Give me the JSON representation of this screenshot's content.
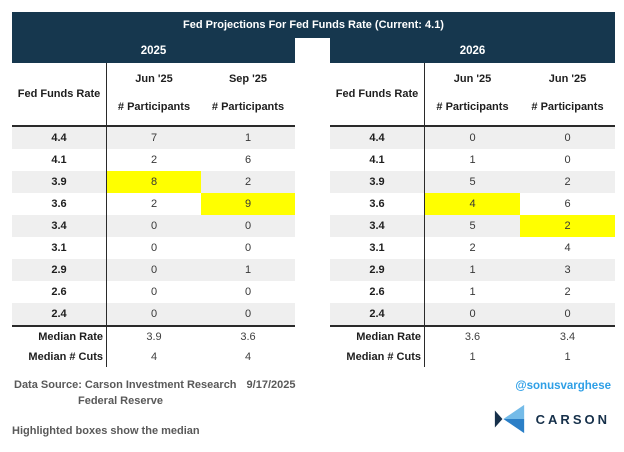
{
  "title": "Fed Projections For Fed Funds Rate (Current: 4.1)",
  "chart_data": [
    {
      "type": "table",
      "group": "2025",
      "rate_column_header": "Fed Funds Rate",
      "columns": [
        {
          "period": "Jun '25",
          "metric": "# Participants"
        },
        {
          "period": "Sep '25",
          "metric": "# Participants"
        }
      ],
      "rates": [
        "4.4",
        "4.1",
        "3.9",
        "3.6",
        "3.4",
        "3.1",
        "2.9",
        "2.6",
        "2.4"
      ],
      "series": [
        {
          "name": "Jun '25",
          "values": [
            7,
            2,
            8,
            2,
            0,
            0,
            0,
            0,
            0
          ],
          "median_highlight_rate": "3.9"
        },
        {
          "name": "Sep '25",
          "values": [
            1,
            6,
            2,
            9,
            0,
            0,
            1,
            0,
            0
          ],
          "median_highlight_rate": "3.6"
        }
      ],
      "median_rate": {
        "label": "Median Rate",
        "values": [
          "3.9",
          "3.6"
        ]
      },
      "median_cuts": {
        "label": "Median # Cuts",
        "values": [
          "4",
          "4"
        ]
      }
    },
    {
      "type": "table",
      "group": "2026",
      "rate_column_header": "Fed Funds Rate",
      "columns": [
        {
          "period": "Jun '25",
          "metric": "# Participants"
        },
        {
          "period": "Jun '25",
          "metric": "# Participants"
        }
      ],
      "rates": [
        "4.4",
        "4.1",
        "3.9",
        "3.6",
        "3.4",
        "3.1",
        "2.9",
        "2.6",
        "2.4"
      ],
      "series": [
        {
          "name": "Jun '25",
          "values": [
            0,
            1,
            5,
            4,
            5,
            2,
            1,
            1,
            0
          ],
          "median_highlight_rate": "3.6"
        },
        {
          "name": "Jun '25",
          "values": [
            0,
            0,
            2,
            6,
            2,
            4,
            3,
            2,
            0
          ],
          "median_highlight_rate": "3.4"
        }
      ],
      "median_rate": {
        "label": "Median Rate",
        "values": [
          "3.6",
          "3.4"
        ]
      },
      "median_cuts": {
        "label": "Median # Cuts",
        "values": [
          "1",
          "1"
        ]
      }
    }
  ],
  "footer": {
    "source_label": "Data Source: Carson Investment Research",
    "source_date": "9/17/2025",
    "source_line2": "Federal Reserve",
    "note": "Highlighted boxes show the median",
    "handle": "@sonusvarghese",
    "brand": "CARSON"
  },
  "colors": {
    "header_navy": "#16374e",
    "stripe_gray": "#efefef",
    "highlight_yellow": "#ffff00",
    "handle_blue": "#2e9fe6",
    "brand_navy": "#16304a",
    "logo_light_blue": "#74bbe8",
    "logo_mid_blue": "#2b7fc7"
  }
}
